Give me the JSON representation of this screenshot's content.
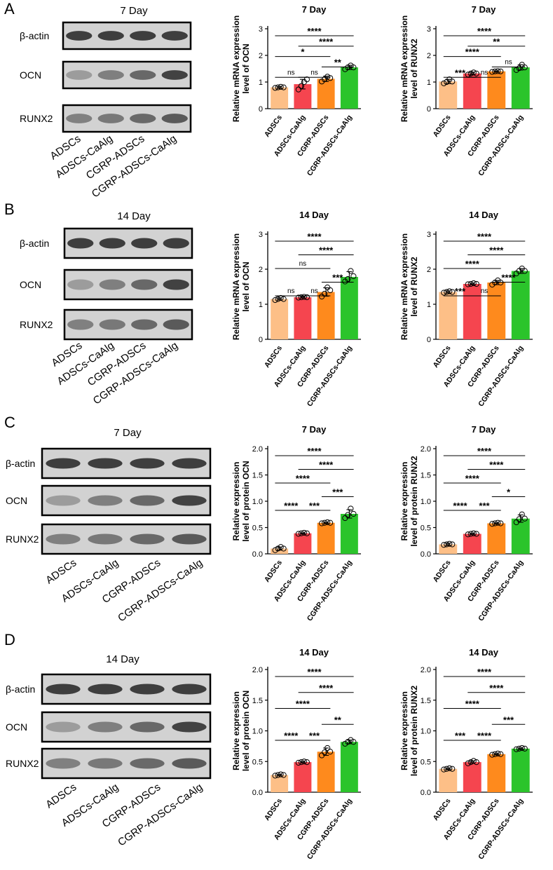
{
  "figure": {
    "panels": [
      {
        "label": "A",
        "blot": {
          "title": "7 Day",
          "rows": [
            "β-actin",
            "OCN",
            "RUNX2"
          ],
          "lanes": [
            "ADSCs",
            "ADSCs-CaAlg",
            "CGRP-ADSCs",
            "CGRP-ADSCs-CaAlg"
          ]
        }
      },
      {
        "label": "B",
        "blot": {
          "title": "14 Day",
          "rows": [
            "β-actin",
            "OCN",
            "RUNX2"
          ],
          "lanes": [
            "ADSCs",
            "ADSCs-CaAlg",
            "CGRP-ADSCs",
            "CGRP-ADSCs-CaAlg"
          ]
        }
      },
      {
        "label": "C",
        "blot": {
          "title": "7 Day",
          "rows": [
            "β-actin",
            "OCN",
            "RUNX2"
          ],
          "lanes": [
            "ADSCs",
            "ADSCs-CaAlg",
            "CGRP-ADSCs",
            "CGRP-ADSCs-CaAlg"
          ]
        }
      },
      {
        "label": "D",
        "blot": {
          "title": "14 Day",
          "rows": [
            "β-actin",
            "OCN",
            "RUNX2"
          ],
          "lanes": [
            "ADSCs",
            "ADSCs-CaAlg",
            "CGRP-ADSCs",
            "CGRP-ADSCs-CaAlg"
          ]
        }
      }
    ],
    "bar_colors": [
      "#FDBF87",
      "#F5454F",
      "#FE8A1D",
      "#2BC42B"
    ]
  },
  "chart_data": [
    {
      "type": "bar",
      "title": "7 Day",
      "ylabel": "Relative mRNA expression\nlevel of OCN",
      "categories": [
        "ADSCs",
        "ADSCs-CaAlg",
        "CGRP-ADSCs",
        "CGRP-ADSCs-CaAlg"
      ],
      "values": [
        0.8,
        0.92,
        1.12,
        1.55
      ],
      "errors": [
        0.03,
        0.18,
        0.1,
        0.08
      ],
      "ylim": [
        0,
        3
      ],
      "yticks": [
        0,
        1,
        2,
        3
      ],
      "points": [
        [
          0.78,
          0.8,
          0.82,
          0.8
        ],
        [
          0.72,
          0.85,
          1.0,
          1.1
        ],
        [
          1.02,
          1.1,
          1.2,
          1.15
        ],
        [
          1.48,
          1.55,
          1.62,
          1.55
        ]
      ],
      "significance": [
        {
          "from": 0,
          "to": 3,
          "label": "****"
        },
        {
          "from": 1,
          "to": 3,
          "label": "****"
        },
        {
          "from": 0,
          "to": 2,
          "label": "*"
        },
        {
          "from": 2,
          "to": 3,
          "label": "**"
        },
        {
          "from": 0,
          "to": 1,
          "label": "ns"
        },
        {
          "from": 1,
          "to": 2,
          "label": "ns"
        }
      ]
    },
    {
      "type": "bar",
      "title": "7 Day",
      "ylabel": "Relative mRNA expression\nlevel of RUNX2",
      "categories": [
        "ADSCs",
        "ADSCs-CaAlg",
        "CGRP-ADSCs",
        "CGRP-ADSCs-CaAlg"
      ],
      "values": [
        1.02,
        1.32,
        1.4,
        1.55
      ],
      "errors": [
        0.08,
        0.05,
        0.02,
        0.1
      ],
      "ylim": [
        0,
        3
      ],
      "yticks": [
        0,
        1,
        2,
        3
      ],
      "points": [
        [
          0.95,
          1.0,
          1.1,
          1.02
        ],
        [
          1.28,
          1.32,
          1.36,
          1.32
        ],
        [
          1.38,
          1.4,
          1.41,
          1.4
        ],
        [
          1.45,
          1.52,
          1.65,
          1.55
        ]
      ],
      "significance": [
        {
          "from": 0,
          "to": 3,
          "label": "****"
        },
        {
          "from": 1,
          "to": 3,
          "label": "**"
        },
        {
          "from": 0,
          "to": 2,
          "label": "****"
        },
        {
          "from": 2,
          "to": 3,
          "label": "ns"
        },
        {
          "from": 0,
          "to": 1,
          "label": "***"
        },
        {
          "from": 1,
          "to": 2,
          "label": "ns"
        }
      ]
    },
    {
      "type": "bar",
      "title": "14 Day",
      "ylabel": "Relative mRNA expression\nlevel of OCN",
      "categories": [
        "ADSCs",
        "ADSCs-CaAlg",
        "CGRP-ADSCs",
        "CGRP-ADSCs-CaAlg"
      ],
      "values": [
        1.15,
        1.2,
        1.35,
        1.78
      ],
      "errors": [
        0.03,
        0.02,
        0.12,
        0.15
      ],
      "ylim": [
        0,
        3
      ],
      "yticks": [
        0,
        1,
        2,
        3
      ],
      "points": [
        [
          1.12,
          1.15,
          1.18,
          1.15
        ],
        [
          1.19,
          1.2,
          1.21,
          1.2
        ],
        [
          1.22,
          1.3,
          1.48,
          1.4
        ],
        [
          1.65,
          1.72,
          1.95,
          1.8
        ]
      ],
      "significance": [
        {
          "from": 0,
          "to": 3,
          "label": "****"
        },
        {
          "from": 1,
          "to": 3,
          "label": "****"
        },
        {
          "from": 0,
          "to": 2,
          "label": "ns"
        },
        {
          "from": 2,
          "to": 3,
          "label": "***"
        },
        {
          "from": 0,
          "to": 1,
          "label": "ns"
        },
        {
          "from": 1,
          "to": 2,
          "label": "ns"
        }
      ]
    },
    {
      "type": "bar",
      "title": "14 Day",
      "ylabel": "Relative mRNA expression\nlevel of RUNX2",
      "categories": [
        "ADSCs",
        "ADSCs-CaAlg",
        "CGRP-ADSCs",
        "CGRP-ADSCs-CaAlg"
      ],
      "values": [
        1.35,
        1.58,
        1.62,
        1.95
      ],
      "errors": [
        0.03,
        0.02,
        0.06,
        0.07
      ],
      "ylim": [
        0,
        3
      ],
      "yticks": [
        0,
        1,
        2,
        3
      ],
      "points": [
        [
          1.33,
          1.35,
          1.37,
          1.35
        ],
        [
          1.57,
          1.58,
          1.6,
          1.58
        ],
        [
          1.56,
          1.62,
          1.68,
          1.62
        ],
        [
          1.88,
          1.95,
          2.02,
          1.95
        ]
      ],
      "significance": [
        {
          "from": 0,
          "to": 3,
          "label": "****"
        },
        {
          "from": 1,
          "to": 3,
          "label": "****"
        },
        {
          "from": 0,
          "to": 2,
          "label": "****"
        },
        {
          "from": 2,
          "to": 3,
          "label": "****"
        },
        {
          "from": 0,
          "to": 1,
          "label": "***"
        },
        {
          "from": 1,
          "to": 2,
          "label": "ns"
        }
      ]
    },
    {
      "type": "bar",
      "title": "7 Day",
      "ylabel": "Relative expression\nlevel of protein OCN",
      "categories": [
        "ADSCs",
        "ADSCs-CaAlg",
        "CGRP-ADSCs",
        "CGRP-ADSCs-CaAlg"
      ],
      "values": [
        0.1,
        0.39,
        0.59,
        0.76
      ],
      "errors": [
        0.03,
        0.01,
        0.01,
        0.08
      ],
      "ylim": [
        0,
        2.0
      ],
      "yticks": [
        0,
        0.5,
        1.0,
        1.5,
        2.0
      ],
      "points": [
        [
          0.07,
          0.1,
          0.13,
          0.1
        ],
        [
          0.38,
          0.39,
          0.4,
          0.39
        ],
        [
          0.58,
          0.59,
          0.6,
          0.59
        ],
        [
          0.68,
          0.74,
          0.86,
          0.76
        ]
      ],
      "significance": [
        {
          "from": 0,
          "to": 3,
          "label": "****"
        },
        {
          "from": 1,
          "to": 3,
          "label": "****"
        },
        {
          "from": 0,
          "to": 2,
          "label": "****"
        },
        {
          "from": 2,
          "to": 3,
          "label": "***"
        },
        {
          "from": 0,
          "to": 1,
          "label": "****"
        },
        {
          "from": 1,
          "to": 2,
          "label": "***"
        }
      ]
    },
    {
      "type": "bar",
      "title": "7 Day",
      "ylabel": "Relative expression\nlevel of protein RUNX2",
      "categories": [
        "ADSCs",
        "ADSCs-CaAlg",
        "CGRP-ADSCs",
        "CGRP-ADSCs-CaAlg"
      ],
      "values": [
        0.18,
        0.38,
        0.58,
        0.67
      ],
      "errors": [
        0.02,
        0.01,
        0.01,
        0.07
      ],
      "ylim": [
        0,
        2.0
      ],
      "yticks": [
        0,
        0.5,
        1.0,
        1.5,
        2.0
      ],
      "points": [
        [
          0.17,
          0.18,
          0.19,
          0.18
        ],
        [
          0.37,
          0.38,
          0.39,
          0.38
        ],
        [
          0.57,
          0.58,
          0.59,
          0.58
        ],
        [
          0.6,
          0.66,
          0.75,
          0.67
        ]
      ],
      "significance": [
        {
          "from": 0,
          "to": 3,
          "label": "****"
        },
        {
          "from": 1,
          "to": 3,
          "label": "****"
        },
        {
          "from": 0,
          "to": 2,
          "label": "****"
        },
        {
          "from": 2,
          "to": 3,
          "label": "*"
        },
        {
          "from": 0,
          "to": 1,
          "label": "****"
        },
        {
          "from": 1,
          "to": 2,
          "label": "***"
        }
      ]
    },
    {
      "type": "bar",
      "title": "14 Day",
      "ylabel": "Relative expression\nlevel of protein OCN",
      "categories": [
        "ADSCs",
        "ADSCs-CaAlg",
        "CGRP-ADSCs",
        "CGRP-ADSCs-CaAlg"
      ],
      "values": [
        0.28,
        0.49,
        0.66,
        0.82
      ],
      "errors": [
        0.01,
        0.01,
        0.06,
        0.03
      ],
      "ylim": [
        0,
        2.0
      ],
      "yticks": [
        0,
        0.5,
        1.0,
        1.5,
        2.0
      ],
      "points": [
        [
          0.27,
          0.28,
          0.29,
          0.28
        ],
        [
          0.48,
          0.49,
          0.5,
          0.49
        ],
        [
          0.6,
          0.65,
          0.72,
          0.66
        ],
        [
          0.79,
          0.82,
          0.85,
          0.82
        ]
      ],
      "significance": [
        {
          "from": 0,
          "to": 3,
          "label": "****"
        },
        {
          "from": 1,
          "to": 3,
          "label": "****"
        },
        {
          "from": 0,
          "to": 2,
          "label": "****"
        },
        {
          "from": 2,
          "to": 3,
          "label": "**"
        },
        {
          "from": 0,
          "to": 1,
          "label": "****"
        },
        {
          "from": 1,
          "to": 2,
          "label": "***"
        }
      ]
    },
    {
      "type": "bar",
      "title": "14 Day",
      "ylabel": "Relative expression\nlevel of protein RUNX2",
      "categories": [
        "ADSCs",
        "ADSCs-CaAlg",
        "CGRP-ADSCs",
        "CGRP-ADSCs-CaAlg"
      ],
      "values": [
        0.38,
        0.49,
        0.62,
        0.71
      ],
      "errors": [
        0.01,
        0.02,
        0.01,
        0.01
      ],
      "ylim": [
        0,
        2.0
      ],
      "yticks": [
        0,
        0.5,
        1.0,
        1.5,
        2.0
      ],
      "points": [
        [
          0.37,
          0.38,
          0.39,
          0.38
        ],
        [
          0.47,
          0.49,
          0.51,
          0.49
        ],
        [
          0.61,
          0.62,
          0.63,
          0.62
        ],
        [
          0.7,
          0.71,
          0.72,
          0.71
        ]
      ],
      "significance": [
        {
          "from": 0,
          "to": 3,
          "label": "****"
        },
        {
          "from": 1,
          "to": 3,
          "label": "****"
        },
        {
          "from": 0,
          "to": 2,
          "label": "****"
        },
        {
          "from": 2,
          "to": 3,
          "label": "***"
        },
        {
          "from": 0,
          "to": 1,
          "label": "***"
        },
        {
          "from": 1,
          "to": 2,
          "label": "****"
        }
      ]
    }
  ]
}
